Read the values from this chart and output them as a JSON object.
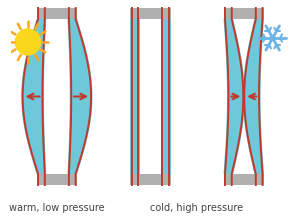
{
  "bg_color": "#ffffff",
  "glass_color": "#6dc8da",
  "glass_inner_color": "#b8e8f0",
  "red_color": "#c0392b",
  "spacer_color": "#b0b0b0",
  "arrow_color": "#c0392b",
  "text_color": "#444444",
  "sun_body_color": "#f9d71c",
  "sun_ray_color": "#f9a825",
  "snow_color": "#6ab4e8",
  "label_warm": "warm, low pressure",
  "label_cold": "cold, high pressure",
  "font_size": 7.0
}
